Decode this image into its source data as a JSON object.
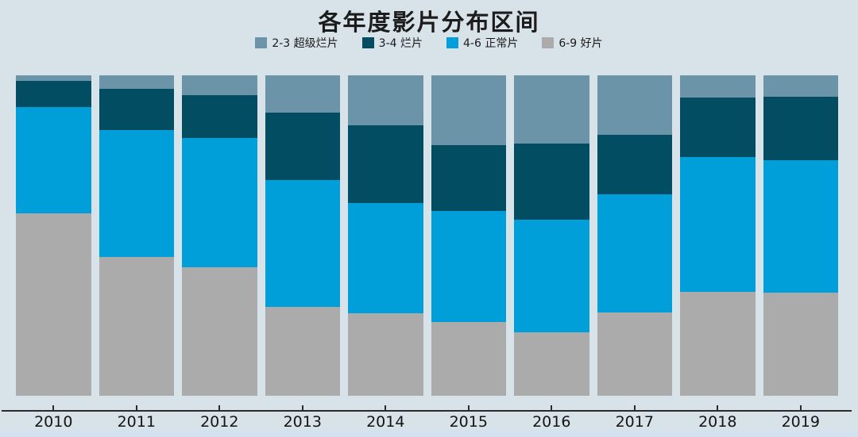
{
  "page": {
    "background_color": "#d8e2e9",
    "footer_strip_color": "#d3e1f0",
    "axis_color": "#2b2b2b",
    "text_color": "#1c1c1c"
  },
  "chart_data": {
    "type": "bar",
    "stacked": true,
    "normalized": "percent",
    "title": "各年度影片分布区间",
    "xlabel": "",
    "ylabel": "",
    "ylim": [
      0,
      100
    ],
    "grid": false,
    "legend_position": "top-center",
    "categories": [
      "2010",
      "2011",
      "2012",
      "2013",
      "2014",
      "2015",
      "2016",
      "2017",
      "2018",
      "2019"
    ],
    "series": [
      {
        "name": "2-3 超级烂片",
        "color": "#6b94a8",
        "values": [
          1.7,
          4.1,
          6.2,
          11.7,
          15.5,
          21.9,
          21.2,
          18.6,
          7.0,
          6.6
        ]
      },
      {
        "name": "3-4 烂片",
        "color": "#034d63",
        "values": [
          8.2,
          12.9,
          13.4,
          21.0,
          24.3,
          20.5,
          23.8,
          18.5,
          18.6,
          20.0
        ]
      },
      {
        "name": "4-6 正常片",
        "color": "#019fda",
        "values": [
          33.2,
          39.6,
          40.4,
          39.7,
          34.4,
          34.6,
          35.2,
          36.9,
          42.0,
          41.3
        ]
      },
      {
        "name": "6-9 好片",
        "color": "#acabac",
        "values": [
          56.9,
          43.4,
          40.0,
          27.6,
          25.8,
          23.0,
          19.8,
          26.0,
          32.4,
          32.1
        ]
      }
    ]
  }
}
